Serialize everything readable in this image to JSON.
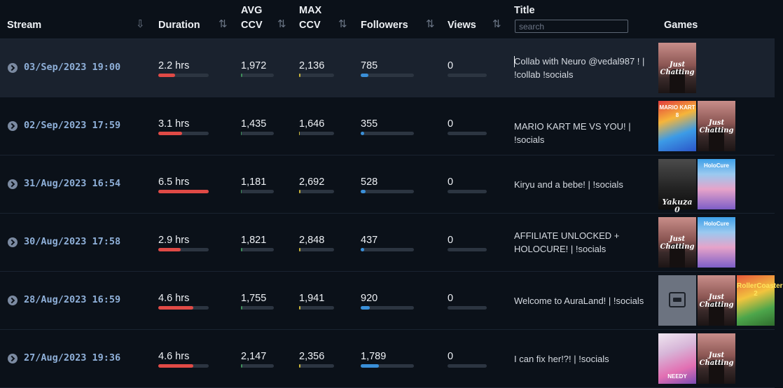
{
  "header": {
    "stream": "Stream",
    "duration": "Duration",
    "avg_ccv_1": "AVG",
    "avg_ccv_2": "CCV",
    "max_ccv_1": "MAX",
    "max_ccv_2": "CCV",
    "followers": "Followers",
    "views": "Views",
    "title": "Title",
    "games": "Games",
    "search_placeholder": "search",
    "sort_icon": "sort-arrows-icon"
  },
  "colors": {
    "duration_bar": "#e04a46",
    "avg_bar": "#3e8f5a",
    "max_bar": "#c9b43a",
    "followers_bar": "#3a8fd8",
    "active_row": "#1a222e"
  },
  "rows": [
    {
      "date": "03/Sep/2023 19:00",
      "duration": "2.2 hrs",
      "duration_fill": 0.34,
      "avg_ccv": "1,972",
      "avg_fill": 0.04,
      "max_ccv": "2,136",
      "max_fill": 0.03,
      "followers": "785",
      "followers_fill": 0.14,
      "views": "0",
      "views_fill": 0,
      "title": "Collab with Neuro @vedal987 ! | !collab !socials",
      "games": [
        "Just Chatting"
      ]
    },
    {
      "date": "02/Sep/2023 17:59",
      "duration": "3.1 hrs",
      "duration_fill": 0.47,
      "avg_ccv": "1,435",
      "avg_fill": 0.03,
      "max_ccv": "1,646",
      "max_fill": 0.025,
      "followers": "355",
      "followers_fill": 0.06,
      "views": "0",
      "views_fill": 0,
      "title": "MARIO KART ME VS YOU! | !socials",
      "games": [
        "Mario Kart 8 Deluxe",
        "Just Chatting"
      ]
    },
    {
      "date": "31/Aug/2023 16:54",
      "duration": "6.5 hrs",
      "duration_fill": 1.0,
      "avg_ccv": "1,181",
      "avg_fill": 0.025,
      "max_ccv": "2,692",
      "max_fill": 0.035,
      "followers": "528",
      "followers_fill": 0.09,
      "views": "0",
      "views_fill": 0,
      "title": "Kiryu and a bebe! | !socials",
      "games": [
        "Yakuza 0",
        "HoloCure"
      ]
    },
    {
      "date": "30/Aug/2023 17:58",
      "duration": "2.9 hrs",
      "duration_fill": 0.44,
      "avg_ccv": "1,821",
      "avg_fill": 0.035,
      "max_ccv": "2,848",
      "max_fill": 0.04,
      "followers": "437",
      "followers_fill": 0.07,
      "views": "0",
      "views_fill": 0,
      "title": "AFFILIATE UNLOCKED + HOLOCURE! | !socials",
      "games": [
        "Just Chatting",
        "HoloCure"
      ]
    },
    {
      "date": "28/Aug/2023 16:59",
      "duration": "4.6 hrs",
      "duration_fill": 0.7,
      "avg_ccv": "1,755",
      "avg_fill": 0.035,
      "max_ccv": "1,941",
      "max_fill": 0.03,
      "followers": "920",
      "followers_fill": 0.17,
      "views": "0",
      "views_fill": 0,
      "title": "Welcome to AuraLand! | !socials",
      "games": [
        "Unknown Game",
        "Just Chatting",
        "RollerCoaster Tycoon 2"
      ]
    },
    {
      "date": "27/Aug/2023 19:36",
      "duration": "4.6 hrs",
      "duration_fill": 0.7,
      "avg_ccv": "2,147",
      "avg_fill": 0.04,
      "max_ccv": "2,356",
      "max_fill": 0.035,
      "followers": "1,789",
      "followers_fill": 0.34,
      "views": "0",
      "views_fill": 0,
      "title": "I can fix her!?! | !socials",
      "games": [
        "Needy Streamer Overload",
        "Just Chatting"
      ]
    }
  ],
  "thumbs": {
    "Just Chatting": {
      "cls": "t-jc",
      "text": "Just Chatting"
    },
    "Mario Kart 8 Deluxe": {
      "cls": "t-mk",
      "text": "MARIO KART 8"
    },
    "Yakuza 0": {
      "cls": "t-yk",
      "text": "Yakuza 0"
    },
    "HoloCure": {
      "cls": "t-hc",
      "text": "HoloCure"
    },
    "Unknown Game": {
      "cls": "t-ph",
      "text": ""
    },
    "RollerCoaster Tycoon 2": {
      "cls": "t-rc",
      "text": "RollerCoaster 2"
    },
    "Needy Streamer Overload": {
      "cls": "t-ana",
      "text": "NEEDY"
    }
  }
}
